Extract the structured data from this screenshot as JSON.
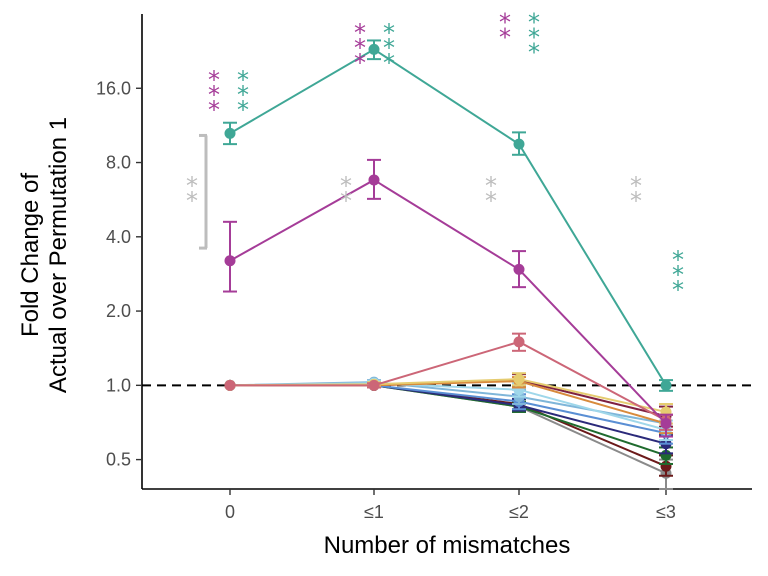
{
  "chart_data": {
    "type": "line",
    "title": "",
    "xlabel": "Number of mismatches",
    "ylabel_lines": [
      "Fold Change of",
      "Actual over Permutation 1"
    ],
    "y_scale": "log2",
    "ylim": [
      0.38,
      32
    ],
    "y_ticks": [
      0.5,
      1.0,
      2.0,
      4.0,
      8.0,
      16.0
    ],
    "y_tick_labels": [
      "0.5",
      "1.0",
      "2.0",
      "4.0",
      "8.0",
      "16.0"
    ],
    "categories": [
      "0",
      "≤1",
      "≤2",
      "≤3"
    ],
    "grid": false,
    "legend": "none",
    "reference_line": {
      "y": 1.0,
      "style": "dashed",
      "color": "#000000"
    },
    "gray_range": {
      "category": "0",
      "low": 3.6,
      "high": 10.3,
      "color": "#bdbdbd"
    },
    "series": [
      {
        "color": "#3fa796",
        "values": [
          10.5,
          23.0,
          9.5,
          1.0
        ],
        "err_low": [
          9.5,
          21.0,
          8.6,
          0.95
        ],
        "err_high": [
          11.6,
          25.0,
          10.6,
          1.05
        ]
      },
      {
        "color": "#a53c98",
        "values": [
          3.2,
          6.8,
          2.95,
          0.7
        ],
        "err_low": [
          2.4,
          5.7,
          2.5,
          0.62
        ],
        "err_high": [
          4.6,
          8.2,
          3.5,
          0.76
        ]
      },
      {
        "color": "#cc6677",
        "values": [
          1.0,
          1.0,
          1.5,
          0.72
        ],
        "err_low": [
          1.0,
          0.98,
          1.38,
          0.66
        ],
        "err_high": [
          1.0,
          1.02,
          1.62,
          0.76
        ]
      },
      {
        "color": "#e5cc70",
        "values": [
          1.0,
          1.01,
          1.06,
          0.78
        ],
        "err_low": [
          1.0,
          0.99,
          1.0,
          0.7
        ],
        "err_high": [
          1.0,
          1.03,
          1.12,
          0.84
        ]
      },
      {
        "color": "#d88a3c",
        "values": [
          1.0,
          1.0,
          1.04,
          0.7
        ],
        "err_low": [
          1.0,
          0.98,
          0.98,
          0.64
        ],
        "err_high": [
          1.0,
          1.02,
          1.08,
          0.76
        ]
      },
      {
        "color": "#9fd7ea",
        "values": [
          1.0,
          1.02,
          0.96,
          0.66
        ],
        "err_low": [
          1.0,
          1.0,
          0.9,
          0.6
        ],
        "err_high": [
          1.0,
          1.04,
          1.02,
          0.72
        ]
      },
      {
        "color": "#7fb6d9",
        "values": [
          1.0,
          1.03,
          0.9,
          0.7
        ],
        "err_low": [
          1.0,
          1.01,
          0.84,
          0.64
        ],
        "err_high": [
          1.0,
          1.05,
          0.96,
          0.76
        ]
      },
      {
        "color": "#5a8fd4",
        "values": [
          1.0,
          1.0,
          0.86,
          0.64
        ],
        "err_low": [
          1.0,
          0.98,
          0.8,
          0.58
        ],
        "err_high": [
          1.0,
          1.02,
          0.92,
          0.7
        ]
      },
      {
        "color": "#2b2a7a",
        "values": [
          1.0,
          1.0,
          0.83,
          0.58
        ],
        "err_low": [
          1.0,
          0.98,
          0.79,
          0.53
        ],
        "err_high": [
          1.0,
          1.02,
          0.88,
          0.63
        ]
      },
      {
        "color": "#1f6b2e",
        "values": [
          1.0,
          1.0,
          0.82,
          0.52
        ],
        "err_low": [
          1.0,
          0.98,
          0.78,
          0.48
        ],
        "err_high": [
          1.0,
          1.02,
          0.86,
          0.56
        ]
      },
      {
        "color": "#6b1a1a",
        "values": [
          1.0,
          1.0,
          0.84,
          0.47
        ],
        "err_low": [
          1.0,
          0.98,
          0.8,
          0.43
        ],
        "err_high": [
          1.0,
          1.02,
          0.88,
          0.52
        ]
      },
      {
        "color": "#7f2040",
        "values": [
          1.0,
          1.0,
          1.05,
          0.75
        ],
        "err_low": [
          1.0,
          0.98,
          0.99,
          0.68
        ],
        "err_high": [
          1.0,
          1.02,
          1.11,
          0.82
        ]
      },
      {
        "color": "#8a8a8a",
        "values": [
          1.0,
          1.0,
          0.82,
          0.44
        ],
        "err_low": [
          1.0,
          0.98,
          0.78,
          0.38
        ],
        "err_high": [
          1.0,
          1.02,
          0.86,
          0.5
        ]
      }
    ],
    "significance_marks": [
      {
        "category": "0",
        "y": 19.3,
        "color": "#a53c98",
        "count": 3,
        "offset": -16
      },
      {
        "category": "0",
        "y": 19.3,
        "color": "#3fa796",
        "count": 3,
        "offset": 13
      },
      {
        "category": "≤1",
        "y": 30.0,
        "color": "#a53c98",
        "count": 3,
        "offset": -14
      },
      {
        "category": "≤1",
        "y": 30.0,
        "color": "#3fa796",
        "count": 3,
        "offset": 15
      },
      {
        "category": "≤2",
        "y": 33.0,
        "color": "#a53c98",
        "count": 2,
        "offset": -14
      },
      {
        "category": "≤2",
        "y": 33.0,
        "color": "#3fa796",
        "count": 3,
        "offset": 15
      },
      {
        "category": "0",
        "y": 7.2,
        "color": "#bdbdbd",
        "count": 2,
        "offset": -38
      },
      {
        "category": "≤1",
        "y": 7.2,
        "color": "#bdbdbd",
        "count": 2,
        "offset": -28
      },
      {
        "category": "≤2",
        "y": 7.2,
        "color": "#bdbdbd",
        "count": 2,
        "offset": -28
      },
      {
        "category": "≤3",
        "y": 7.2,
        "color": "#bdbdbd",
        "count": 2,
        "offset": -30
      },
      {
        "category": "≤3",
        "y": 3.6,
        "color": "#3fa796",
        "count": 3,
        "offset": 12
      }
    ]
  }
}
